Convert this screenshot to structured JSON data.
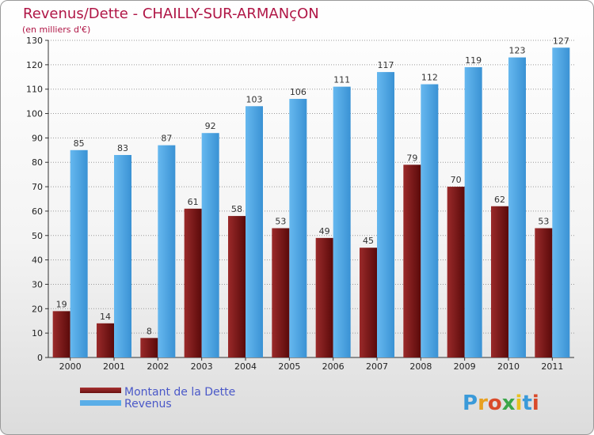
{
  "title": "Revenus/Dette - CHAILLY-SUR-ARMANçON",
  "subtitle": "(en milliers d'€)",
  "colors": {
    "title": "#b01646",
    "debt": "#7a1a1a",
    "debt_dark": "#5a0a0a",
    "revenue": "#5aaee8",
    "revenue_dark": "#2f86c8",
    "legend_text": "#4a58c8"
  },
  "logo": {
    "text": "Proxiti",
    "letter_colors": [
      "#3a9ad9",
      "#e8a020",
      "#d94a2a",
      "#3aa64a",
      "#e8c020",
      "#3a9ad9",
      "#d94a2a"
    ]
  },
  "chart_data": {
    "type": "bar",
    "categories": [
      "2000",
      "2001",
      "2002",
      "2003",
      "2004",
      "2005",
      "2006",
      "2007",
      "2008",
      "2009",
      "2010",
      "2011"
    ],
    "series": [
      {
        "name": "Montant de la Dette",
        "values": [
          19,
          14,
          8,
          61,
          58,
          53,
          49,
          45,
          79,
          70,
          62,
          53
        ]
      },
      {
        "name": "Revenus",
        "values": [
          85,
          83,
          87,
          92,
          103,
          106,
          111,
          117,
          112,
          119,
          123,
          127
        ]
      }
    ],
    "yticks": [
      0,
      10,
      20,
      30,
      40,
      50,
      60,
      70,
      80,
      90,
      100,
      110,
      120,
      130
    ],
    "ylim": [
      0,
      130
    ],
    "grid": true,
    "legend_position": "bottom-left",
    "title": "Revenus/Dette - CHAILLY-SUR-ARMANçON",
    "ylabel": "(en milliers d'€)"
  }
}
